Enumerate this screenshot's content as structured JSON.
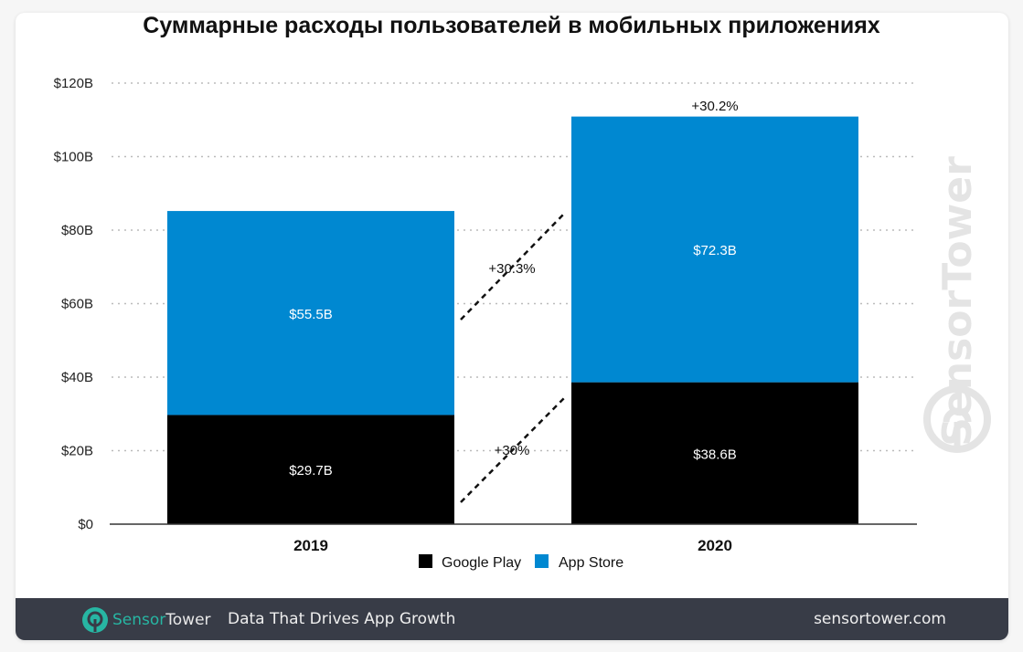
{
  "chart_data": {
    "type": "bar",
    "stacked": true,
    "title": "Суммарные расходы пользователей в мобильных приложениях",
    "categories": [
      "2019",
      "2020"
    ],
    "series": [
      {
        "name": "Google Play",
        "values": [
          29.7,
          38.6
        ],
        "labels": [
          "$29.7B",
          "$38.6B"
        ],
        "color": "#000000"
      },
      {
        "name": "App Store",
        "values": [
          55.5,
          72.3
        ],
        "labels": [
          "$55.5B",
          "$72.3B"
        ],
        "color": "#0088d1"
      }
    ],
    "ylim": [
      0,
      120
    ],
    "yticks": [
      0,
      20,
      40,
      60,
      80,
      100,
      120
    ],
    "ytick_labels": [
      "$0",
      "$20B",
      "$40B",
      "$60B",
      "$80B",
      "$100B",
      "$120B"
    ],
    "grid": true,
    "legend_position": "bottom",
    "annotations": {
      "total_growth": "+30.2%",
      "app_store_growth": "+30.3%",
      "google_play_growth": "+30%"
    }
  },
  "watermark": "SensorTower",
  "footer": {
    "brand_a": "Sensor",
    "brand_b": "Tower",
    "tagline": "Data That Drives App Growth",
    "site": "sensortower.com"
  }
}
